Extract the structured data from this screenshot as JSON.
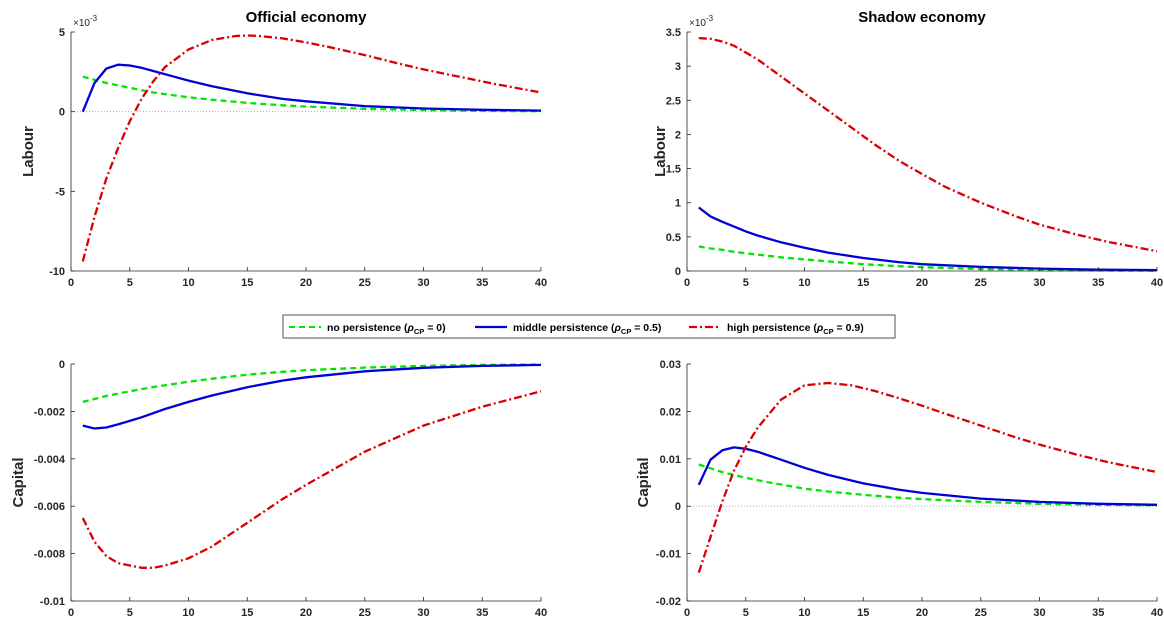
{
  "legend": {
    "entries": [
      {
        "series": "no",
        "text": "no persistence (",
        "sub": "CP",
        "tail": " = 0)"
      },
      {
        "series": "mid",
        "text": "middle persistence (",
        "sub": "CP",
        "tail": " = 0.5)"
      },
      {
        "series": "high",
        "text": "high persistence (",
        "sub": "CP",
        "tail": " = 0.9)"
      }
    ],
    "rho": "ρ"
  },
  "colors": {
    "no": "#00e600",
    "mid": "#0000d9",
    "high": "#d90000"
  },
  "chart_data": [
    {
      "type": "line",
      "title": "Official economy",
      "ylabel": "Labour",
      "exponent": "×10",
      "exponent_power": "-3",
      "xlim": [
        0,
        40
      ],
      "ylim": [
        -10,
        5
      ],
      "xticks": [
        0,
        5,
        10,
        15,
        20,
        25,
        30,
        35,
        40
      ],
      "yticks": [
        -10,
        -5,
        0,
        5
      ],
      "ytick_labels": [
        "-10",
        "-5",
        "0",
        "5"
      ],
      "zero_line": true,
      "series": [
        {
          "key": "no",
          "x": [
            1,
            2,
            3,
            4,
            5,
            6,
            7,
            8,
            10,
            12,
            15,
            18,
            20,
            25,
            30,
            35,
            40
          ],
          "y": [
            2.2,
            2.0,
            1.8,
            1.65,
            1.5,
            1.35,
            1.2,
            1.1,
            0.9,
            0.75,
            0.55,
            0.4,
            0.32,
            0.18,
            0.1,
            0.05,
            0.03
          ]
        },
        {
          "key": "mid",
          "x": [
            1,
            2,
            3,
            4,
            5,
            6,
            7,
            8,
            10,
            12,
            15,
            18,
            20,
            25,
            30,
            35,
            40
          ],
          "y": [
            0,
            1.8,
            2.7,
            2.95,
            2.9,
            2.75,
            2.55,
            2.35,
            1.95,
            1.6,
            1.15,
            0.8,
            0.65,
            0.35,
            0.2,
            0.12,
            0.07
          ]
        },
        {
          "key": "high",
          "x": [
            1,
            2,
            3,
            4,
            5,
            6,
            7,
            8,
            10,
            12,
            14,
            15,
            16,
            18,
            20,
            22,
            25,
            28,
            30,
            33,
            36,
            40
          ],
          "y": [
            -9.4,
            -6.6,
            -4.2,
            -2.3,
            -0.6,
            0.8,
            1.9,
            2.8,
            3.9,
            4.5,
            4.75,
            4.78,
            4.75,
            4.6,
            4.35,
            4.05,
            3.55,
            3.0,
            2.65,
            2.2,
            1.75,
            1.2
          ]
        }
      ]
    },
    {
      "type": "line",
      "title": "Shadow economy",
      "ylabel": "Labour",
      "exponent": "×10",
      "exponent_power": "-3",
      "xlim": [
        0,
        40
      ],
      "ylim": [
        0,
        3.5
      ],
      "xticks": [
        0,
        5,
        10,
        15,
        20,
        25,
        30,
        35,
        40
      ],
      "yticks": [
        0,
        0.5,
        1,
        1.5,
        2,
        2.5,
        3,
        3.5
      ],
      "ytick_labels": [
        "0",
        "0.5",
        "1",
        "1.5",
        "2",
        "2.5",
        "3",
        "3.5"
      ],
      "zero_line": false,
      "series": [
        {
          "key": "no",
          "x": [
            1,
            2,
            3,
            4,
            5,
            6,
            8,
            10,
            12,
            15,
            18,
            20,
            25,
            30,
            35,
            40
          ],
          "y": [
            0.36,
            0.33,
            0.31,
            0.28,
            0.26,
            0.24,
            0.2,
            0.17,
            0.14,
            0.1,
            0.07,
            0.055,
            0.03,
            0.015,
            0.008,
            0.005
          ]
        },
        {
          "key": "mid",
          "x": [
            1,
            2,
            3,
            4,
            5,
            6,
            8,
            10,
            12,
            15,
            18,
            20,
            25,
            30,
            35,
            40
          ],
          "y": [
            0.93,
            0.8,
            0.72,
            0.65,
            0.58,
            0.52,
            0.42,
            0.34,
            0.27,
            0.19,
            0.13,
            0.1,
            0.06,
            0.035,
            0.02,
            0.012
          ]
        },
        {
          "key": "high",
          "x": [
            1,
            2,
            3,
            4,
            5,
            6,
            8,
            10,
            12,
            14,
            16,
            18,
            20,
            22,
            25,
            28,
            30,
            33,
            36,
            40
          ],
          "y": [
            3.41,
            3.4,
            3.36,
            3.3,
            3.2,
            3.1,
            2.85,
            2.6,
            2.35,
            2.1,
            1.85,
            1.62,
            1.42,
            1.23,
            1.0,
            0.8,
            0.68,
            0.54,
            0.42,
            0.29
          ]
        }
      ]
    },
    {
      "type": "line",
      "title": "",
      "ylabel": "Capital",
      "xlim": [
        0,
        40
      ],
      "ylim": [
        -0.01,
        0
      ],
      "xticks": [
        0,
        5,
        10,
        15,
        20,
        25,
        30,
        35,
        40
      ],
      "yticks": [
        -0.01,
        -0.008,
        -0.006,
        -0.004,
        -0.002,
        0
      ],
      "ytick_labels": [
        "-0.01",
        "-0.008",
        "-0.006",
        "-0.004",
        "-0.002",
        "0"
      ],
      "zero_line": false,
      "series": [
        {
          "key": "no",
          "x": [
            1,
            3,
            5,
            7,
            10,
            12,
            15,
            18,
            20,
            25,
            30,
            35,
            40
          ],
          "y": [
            -0.0016,
            -0.00135,
            -0.00115,
            -0.00097,
            -0.00075,
            -0.00062,
            -0.00045,
            -0.00033,
            -0.00026,
            -0.00015,
            -8e-05,
            -4e-05,
            -2e-05
          ]
        },
        {
          "key": "mid",
          "x": [
            1,
            2,
            3,
            4,
            5,
            6,
            8,
            10,
            12,
            15,
            18,
            20,
            25,
            30,
            35,
            40
          ],
          "y": [
            -0.0026,
            -0.00272,
            -0.00268,
            -0.00255,
            -0.0024,
            -0.00225,
            -0.0019,
            -0.0016,
            -0.00133,
            -0.00098,
            -0.0007,
            -0.00056,
            -0.00031,
            -0.00016,
            -8e-05,
            -4e-05
          ]
        },
        {
          "key": "high",
          "x": [
            1,
            2,
            3,
            4,
            5,
            6,
            7,
            8,
            10,
            12,
            15,
            18,
            20,
            25,
            30,
            35,
            40
          ],
          "y": [
            -0.0065,
            -0.0075,
            -0.0081,
            -0.0084,
            -0.0085,
            -0.0086,
            -0.0086,
            -0.0085,
            -0.0082,
            -0.0077,
            -0.0067,
            -0.0057,
            -0.0051,
            -0.0037,
            -0.0026,
            -0.0018,
            -0.00115
          ]
        }
      ]
    },
    {
      "type": "line",
      "title": "",
      "ylabel": "Capital",
      "xlim": [
        0,
        40
      ],
      "ylim": [
        -0.02,
        0.03
      ],
      "xticks": [
        0,
        5,
        10,
        15,
        20,
        25,
        30,
        35,
        40
      ],
      "yticks": [
        -0.02,
        -0.01,
        0,
        0.01,
        0.02,
        0.03
      ],
      "ytick_labels": [
        "-0.02",
        "-0.01",
        "0",
        "0.01",
        "0.02",
        "0.03"
      ],
      "zero_line": true,
      "series": [
        {
          "key": "no",
          "x": [
            1,
            3,
            5,
            7,
            10,
            12,
            15,
            18,
            20,
            25,
            30,
            35,
            40
          ],
          "y": [
            0.0088,
            0.0072,
            0.006,
            0.005,
            0.0037,
            0.0031,
            0.0024,
            0.0018,
            0.0015,
            0.0009,
            0.0005,
            0.0003,
            0.0002
          ]
        },
        {
          "key": "mid",
          "x": [
            1,
            2,
            3,
            4,
            5,
            6,
            8,
            10,
            12,
            15,
            18,
            20,
            25,
            30,
            35,
            40
          ],
          "y": [
            0.0045,
            0.0098,
            0.0118,
            0.0124,
            0.0121,
            0.0115,
            0.0098,
            0.0081,
            0.0066,
            0.0048,
            0.0035,
            0.0028,
            0.0016,
            0.0009,
            0.0005,
            0.0003
          ]
        },
        {
          "key": "high",
          "x": [
            1,
            2,
            3,
            4,
            5,
            6,
            8,
            10,
            12,
            14,
            16,
            18,
            20,
            22,
            25,
            28,
            30,
            33,
            36,
            40
          ],
          "y": [
            -0.014,
            -0.0065,
            0.001,
            0.0075,
            0.0125,
            0.0165,
            0.0225,
            0.0255,
            0.026,
            0.0255,
            0.0243,
            0.0228,
            0.0212,
            0.0195,
            0.017,
            0.0145,
            0.013,
            0.011,
            0.0092,
            0.0072
          ]
        }
      ]
    }
  ]
}
